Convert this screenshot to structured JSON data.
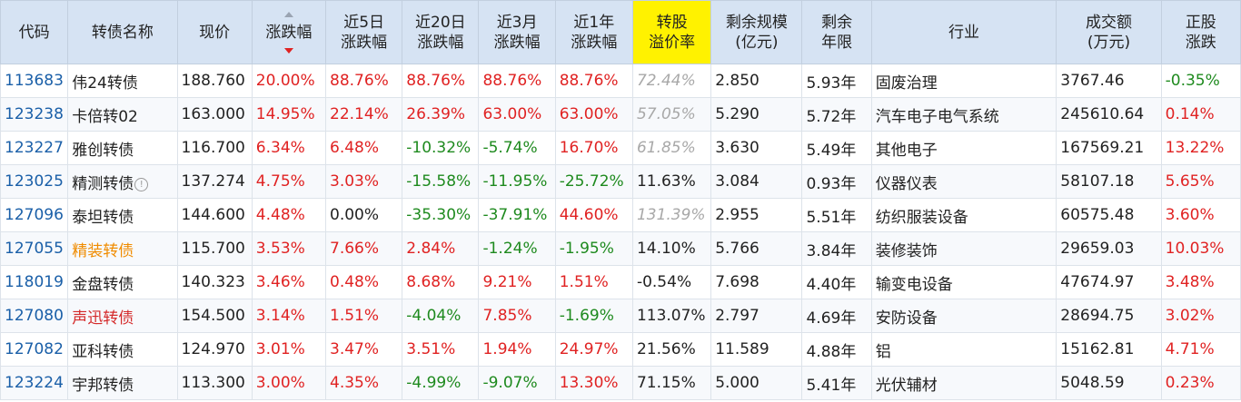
{
  "headers": {
    "code": "代码",
    "name": "转债名称",
    "price": "现价",
    "change": "涨跌幅",
    "chg5d_1": "近5日",
    "chg5d_2": "涨跌幅",
    "chg20d_1": "近20日",
    "chg20d_2": "涨跌幅",
    "chg3m_1": "近3月",
    "chg3m_2": "涨跌幅",
    "chg1y_1": "近1年",
    "chg1y_2": "涨跌幅",
    "premium_1": "转股",
    "premium_2": "溢价率",
    "scale_1": "剩余规模",
    "scale_2": "(亿元)",
    "years_1": "剩余",
    "years_2": "年限",
    "industry": "行业",
    "turnover_1": "成交额",
    "turnover_2": "(万元)",
    "stock_chg_1": "正股",
    "stock_chg_2": "涨跌"
  },
  "rows": [
    {
      "code": "113683",
      "name": "伟24转债",
      "price": "188.760",
      "change": "20.00%",
      "chg5d": "88.76%",
      "chg20d": "88.76%",
      "chg3m": "88.76%",
      "chg1y": "88.76%",
      "premium": "72.44%",
      "scale": "2.850",
      "years": "5.93年",
      "industry": "固废治理",
      "turnover": "3767.46",
      "stock_chg": "-0.35%"
    },
    {
      "code": "123238",
      "name": "卡倍转02",
      "price": "163.000",
      "change": "14.95%",
      "chg5d": "22.14%",
      "chg20d": "26.39%",
      "chg3m": "63.00%",
      "chg1y": "63.00%",
      "premium": "57.05%",
      "scale": "5.290",
      "years": "5.72年",
      "industry": "汽车电子电气系统",
      "turnover": "245610.64",
      "stock_chg": "0.14%"
    },
    {
      "code": "123227",
      "name": "雅创转债",
      "price": "116.700",
      "change": "6.34%",
      "chg5d": "6.48%",
      "chg20d": "-10.32%",
      "chg3m": "-5.74%",
      "chg1y": "16.70%",
      "premium": "61.85%",
      "scale": "3.630",
      "years": "5.49年",
      "industry": "其他电子",
      "turnover": "167569.21",
      "stock_chg": "13.22%"
    },
    {
      "code": "123025",
      "name": "精测转债",
      "price": "137.274",
      "change": "4.75%",
      "chg5d": "3.03%",
      "chg20d": "-15.58%",
      "chg3m": "-11.95%",
      "chg1y": "-25.72%",
      "premium": "11.63%",
      "scale": "3.084",
      "years": "0.93年",
      "industry": "仪器仪表",
      "turnover": "58107.18",
      "stock_chg": "5.65%"
    },
    {
      "code": "127096",
      "name": "泰坦转债",
      "price": "144.600",
      "change": "4.48%",
      "chg5d": "0.00%",
      "chg20d": "-35.30%",
      "chg3m": "-37.91%",
      "chg1y": "44.60%",
      "premium": "131.39%",
      "scale": "2.955",
      "years": "5.51年",
      "industry": "纺织服装设备",
      "turnover": "60575.48",
      "stock_chg": "3.60%"
    },
    {
      "code": "127055",
      "name": "精装转债",
      "price": "115.700",
      "change": "3.53%",
      "chg5d": "7.66%",
      "chg20d": "2.84%",
      "chg3m": "-1.24%",
      "chg1y": "-1.95%",
      "premium": "14.10%",
      "scale": "5.766",
      "years": "3.84年",
      "industry": "装修装饰",
      "turnover": "29659.03",
      "stock_chg": "10.03%"
    },
    {
      "code": "118019",
      "name": "金盘转债",
      "price": "140.323",
      "change": "3.46%",
      "chg5d": "0.48%",
      "chg20d": "8.68%",
      "chg3m": "9.21%",
      "chg1y": "1.51%",
      "premium": "-0.54%",
      "scale": "7.698",
      "years": "4.40年",
      "industry": "输变电设备",
      "turnover": "47674.97",
      "stock_chg": "3.48%"
    },
    {
      "code": "127080",
      "name": "声迅转债",
      "price": "154.500",
      "change": "3.14%",
      "chg5d": "1.51%",
      "chg20d": "-4.04%",
      "chg3m": "7.85%",
      "chg1y": "-1.69%",
      "premium": "113.07%",
      "scale": "2.797",
      "years": "4.69年",
      "industry": "安防设备",
      "turnover": "28694.75",
      "stock_chg": "3.02%"
    },
    {
      "code": "127082",
      "name": "亚科转债",
      "price": "124.970",
      "change": "3.01%",
      "chg5d": "3.47%",
      "chg20d": "3.51%",
      "chg3m": "1.94%",
      "chg1y": "24.97%",
      "premium": "21.56%",
      "scale": "11.589",
      "years": "4.88年",
      "industry": "铝",
      "turnover": "15162.81",
      "stock_chg": "4.71%"
    },
    {
      "code": "123224",
      "name": "宇邦转债",
      "price": "113.300",
      "change": "3.00%",
      "chg5d": "4.35%",
      "chg20d": "-4.99%",
      "chg3m": "-9.07%",
      "chg1y": "13.30%",
      "premium": "71.15%",
      "scale": "5.000",
      "years": "5.41年",
      "industry": "光伏辅材",
      "turnover": "5048.59",
      "stock_chg": "0.23%"
    }
  ],
  "colors": {
    "header_bg": "#d6e3f3",
    "premium_header_bg": "#fff200",
    "up": "#e02222",
    "down": "#1e8a1e",
    "code_link": "#1a5fa8",
    "name_orange": "#f08c00",
    "name_red": "#d42a2a",
    "muted": "#a8a8a8"
  },
  "sort": {
    "column": "change",
    "direction": "desc"
  },
  "icons": {
    "info": "info-circle-icon",
    "sort": "sort-arrows-icon"
  }
}
